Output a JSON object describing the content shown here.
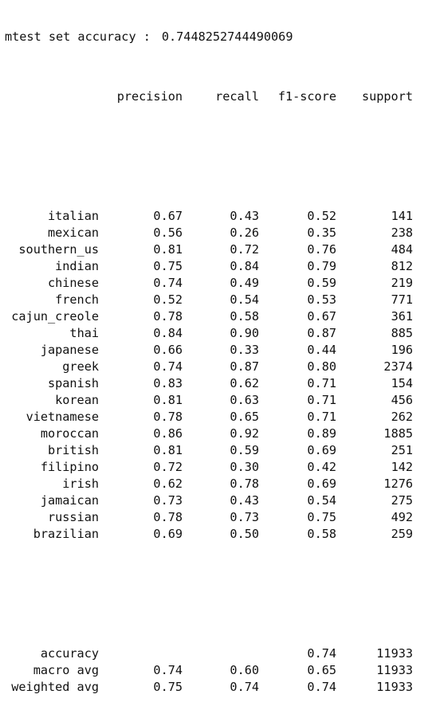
{
  "accuracy_line": {
    "label": "mtest set accuracy :",
    "value": "0.7448252744490069"
  },
  "report": {
    "headers": {
      "precision": "precision",
      "recall": "recall",
      "f1": "f1-score",
      "support": "support"
    },
    "rows": [
      {
        "label": "italian",
        "precision": "0.67",
        "recall": "0.43",
        "f1": "0.52",
        "support": "141"
      },
      {
        "label": "mexican",
        "precision": "0.56",
        "recall": "0.26",
        "f1": "0.35",
        "support": "238"
      },
      {
        "label": "southern_us",
        "precision": "0.81",
        "recall": "0.72",
        "f1": "0.76",
        "support": "484"
      },
      {
        "label": "indian",
        "precision": "0.75",
        "recall": "0.84",
        "f1": "0.79",
        "support": "812"
      },
      {
        "label": "chinese",
        "precision": "0.74",
        "recall": "0.49",
        "f1": "0.59",
        "support": "219"
      },
      {
        "label": "french",
        "precision": "0.52",
        "recall": "0.54",
        "f1": "0.53",
        "support": "771"
      },
      {
        "label": "cajun_creole",
        "precision": "0.78",
        "recall": "0.58",
        "f1": "0.67",
        "support": "361"
      },
      {
        "label": "thai",
        "precision": "0.84",
        "recall": "0.90",
        "f1": "0.87",
        "support": "885"
      },
      {
        "label": "japanese",
        "precision": "0.66",
        "recall": "0.33",
        "f1": "0.44",
        "support": "196"
      },
      {
        "label": "greek",
        "precision": "0.74",
        "recall": "0.87",
        "f1": "0.80",
        "support": "2374"
      },
      {
        "label": "spanish",
        "precision": "0.83",
        "recall": "0.62",
        "f1": "0.71",
        "support": "154"
      },
      {
        "label": "korean",
        "precision": "0.81",
        "recall": "0.63",
        "f1": "0.71",
        "support": "456"
      },
      {
        "label": "vietnamese",
        "precision": "0.78",
        "recall": "0.65",
        "f1": "0.71",
        "support": "262"
      },
      {
        "label": "moroccan",
        "precision": "0.86",
        "recall": "0.92",
        "f1": "0.89",
        "support": "1885"
      },
      {
        "label": "british",
        "precision": "0.81",
        "recall": "0.59",
        "f1": "0.69",
        "support": "251"
      },
      {
        "label": "filipino",
        "precision": "0.72",
        "recall": "0.30",
        "f1": "0.42",
        "support": "142"
      },
      {
        "label": "irish",
        "precision": "0.62",
        "recall": "0.78",
        "f1": "0.69",
        "support": "1276"
      },
      {
        "label": "jamaican",
        "precision": "0.73",
        "recall": "0.43",
        "f1": "0.54",
        "support": "275"
      },
      {
        "label": "russian",
        "precision": "0.78",
        "recall": "0.73",
        "f1": "0.75",
        "support": "492"
      },
      {
        "label": "brazilian",
        "precision": "0.69",
        "recall": "0.50",
        "f1": "0.58",
        "support": "259"
      }
    ],
    "summary": [
      {
        "label": "accuracy",
        "precision": "",
        "recall": "",
        "f1": "0.74",
        "support": "11933"
      },
      {
        "label": "macro avg",
        "precision": "0.74",
        "recall": "0.60",
        "f1": "0.65",
        "support": "11933"
      },
      {
        "label": "weighted avg",
        "precision": "0.75",
        "recall": "0.74",
        "f1": "0.74",
        "support": "11933"
      }
    ]
  }
}
